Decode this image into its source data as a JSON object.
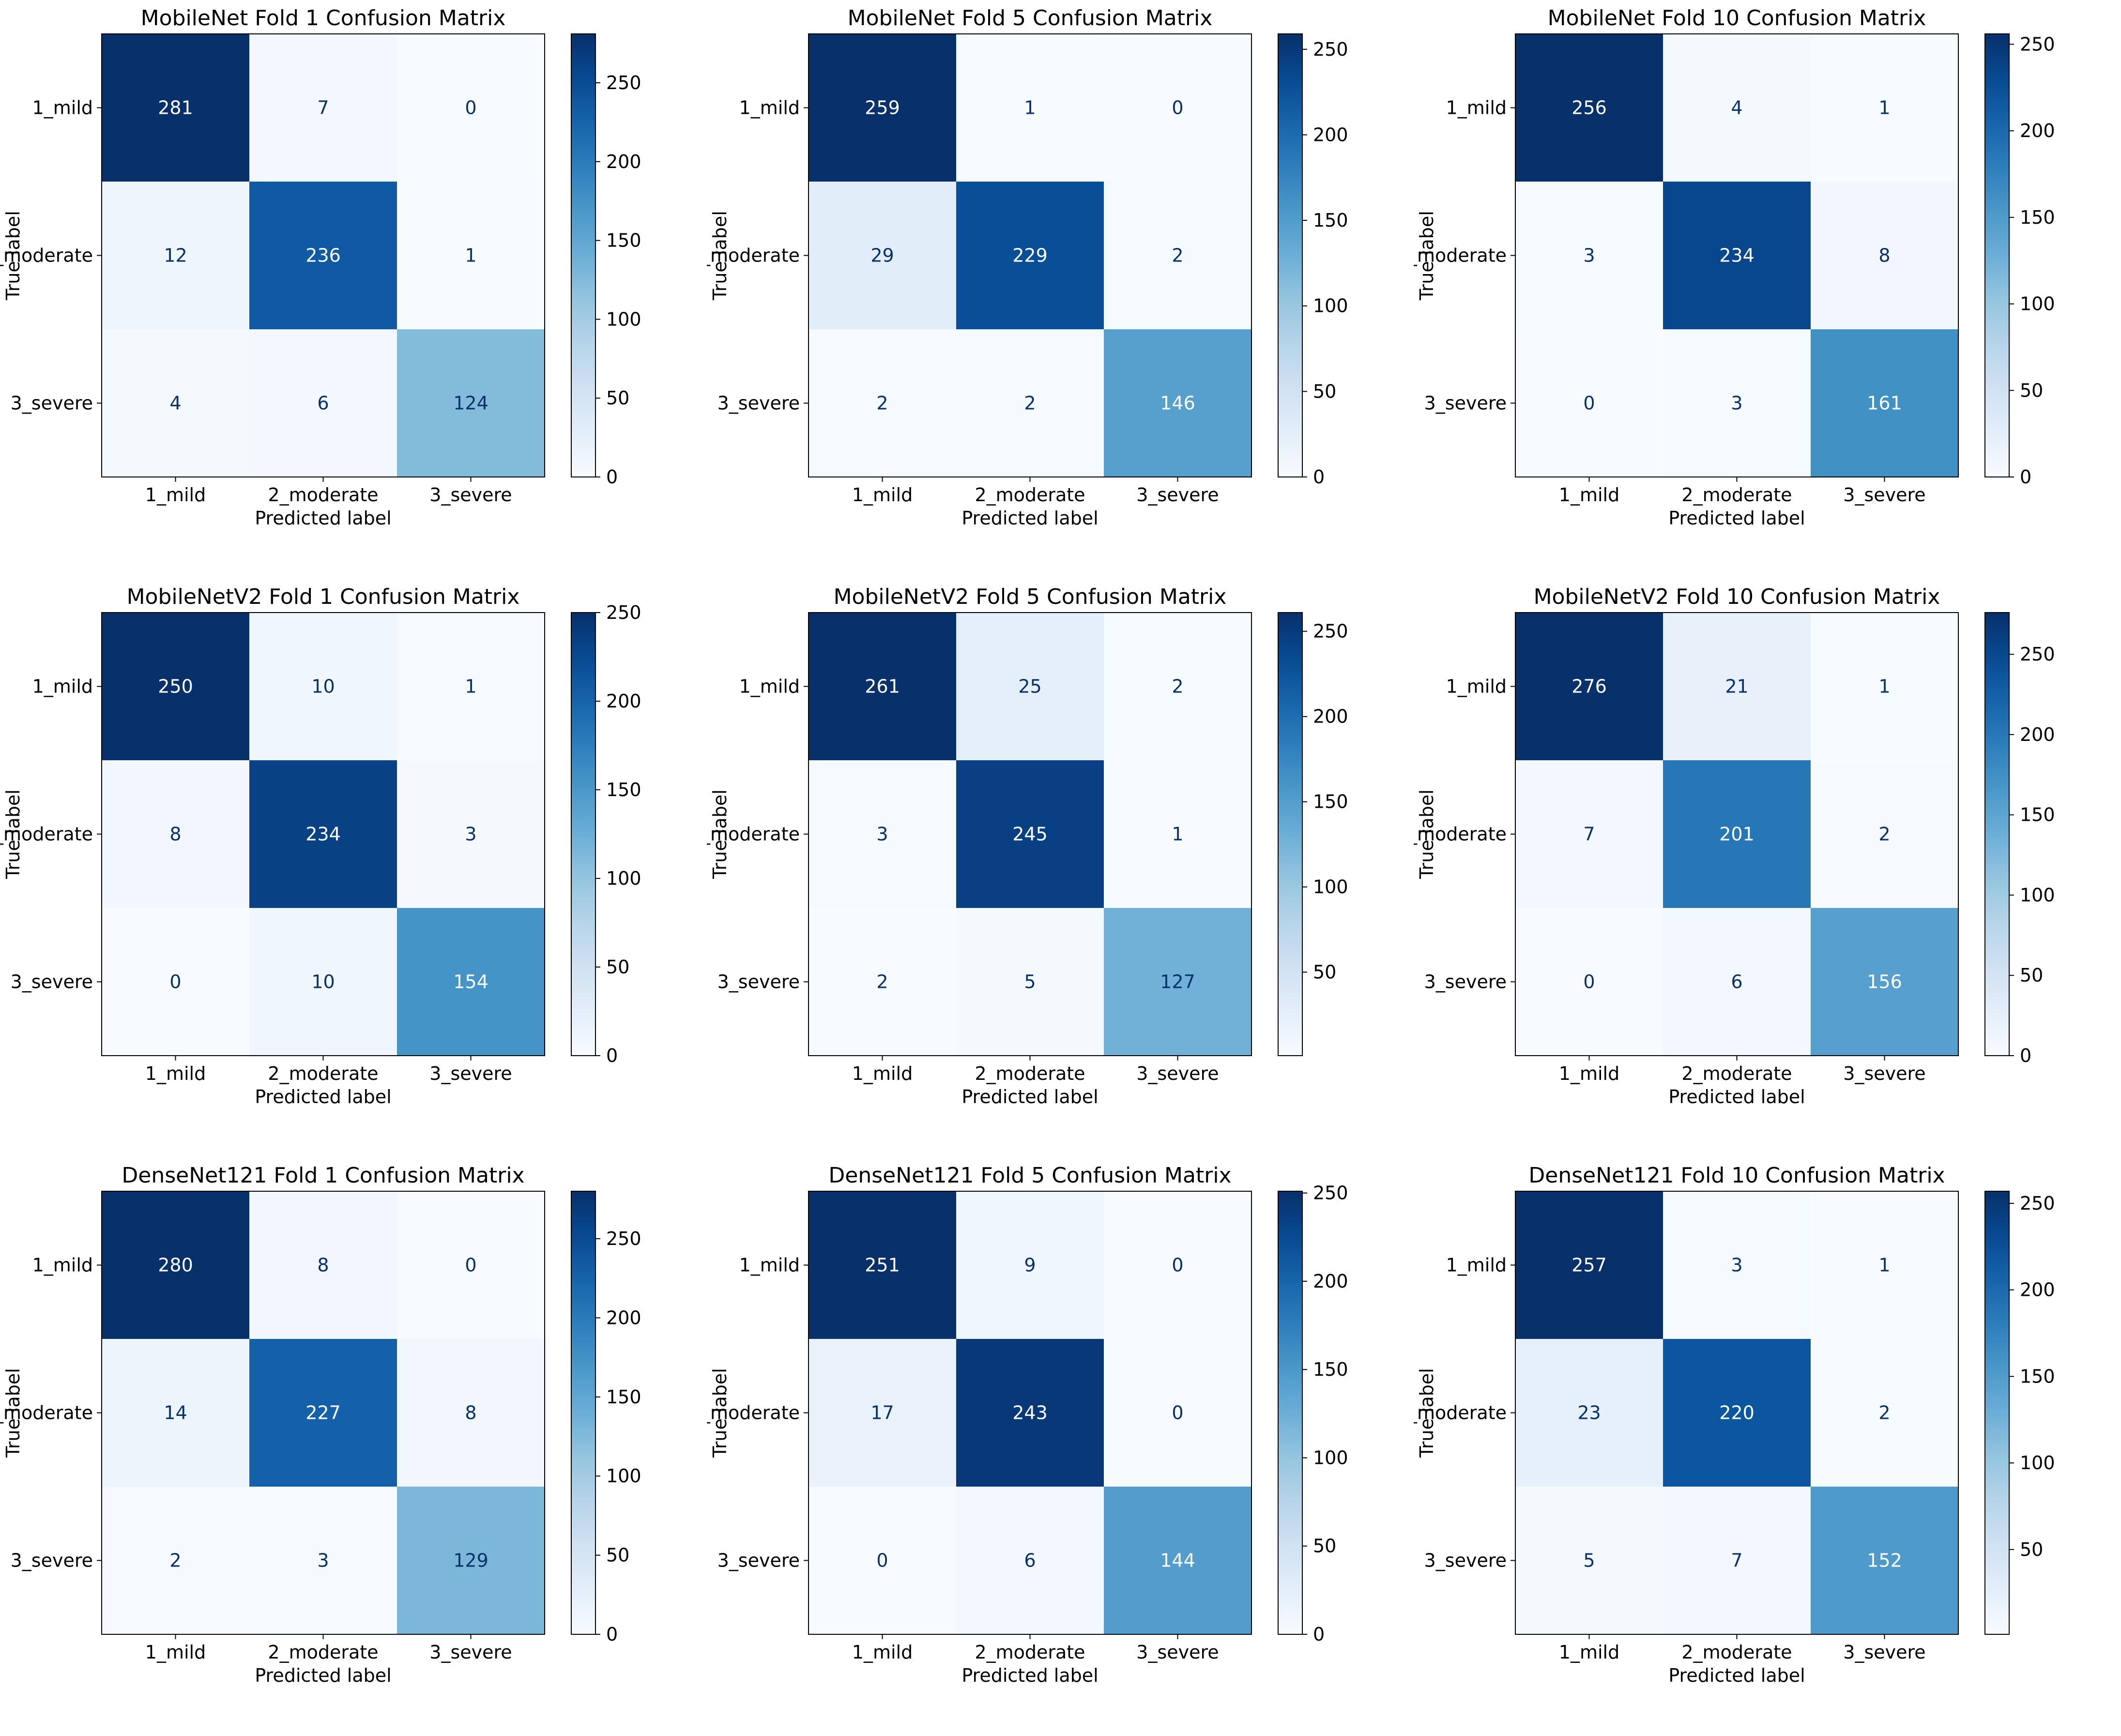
{
  "chart_data": [
    {
      "type": "heatmap",
      "title": "MobileNet Fold 1 Confusion Matrix",
      "xlabel": "Predicted label",
      "ylabel": "True label",
      "x_categories": [
        "1_mild",
        "2_moderate",
        "3_severe"
      ],
      "y_categories": [
        "1_mild",
        "2_moderate",
        "3_severe"
      ],
      "values": [
        [
          281,
          7,
          0
        ],
        [
          12,
          236,
          1
        ],
        [
          4,
          6,
          124
        ]
      ],
      "colorbar": {
        "min": 0,
        "max": 281,
        "ticks": [
          0,
          50,
          100,
          150,
          200,
          250
        ]
      }
    },
    {
      "type": "heatmap",
      "title": "MobileNet Fold 5 Confusion Matrix",
      "xlabel": "Predicted label",
      "ylabel": "True label",
      "x_categories": [
        "1_mild",
        "2_moderate",
        "3_severe"
      ],
      "y_categories": [
        "1_mild",
        "2_moderate",
        "3_severe"
      ],
      "values": [
        [
          259,
          1,
          0
        ],
        [
          29,
          229,
          2
        ],
        [
          2,
          2,
          146
        ]
      ],
      "colorbar": {
        "min": 0,
        "max": 259,
        "ticks": [
          0,
          50,
          100,
          150,
          200,
          250
        ]
      }
    },
    {
      "type": "heatmap",
      "title": "MobileNet Fold 10 Confusion Matrix",
      "xlabel": "Predicted label",
      "ylabel": "True label",
      "x_categories": [
        "1_mild",
        "2_moderate",
        "3_severe"
      ],
      "y_categories": [
        "1_mild",
        "2_moderate",
        "3_severe"
      ],
      "values": [
        [
          256,
          4,
          1
        ],
        [
          3,
          234,
          8
        ],
        [
          0,
          3,
          161
        ]
      ],
      "colorbar": {
        "min": 0,
        "max": 256,
        "ticks": [
          0,
          50,
          100,
          150,
          200,
          250
        ]
      }
    },
    {
      "type": "heatmap",
      "title": "MobileNetV2 Fold 1 Confusion Matrix",
      "xlabel": "Predicted label",
      "ylabel": "True label",
      "x_categories": [
        "1_mild",
        "2_moderate",
        "3_severe"
      ],
      "y_categories": [
        "1_mild",
        "2_moderate",
        "3_severe"
      ],
      "values": [
        [
          250,
          10,
          1
        ],
        [
          8,
          234,
          3
        ],
        [
          0,
          10,
          154
        ]
      ],
      "colorbar": {
        "min": 0,
        "max": 250,
        "ticks": [
          0,
          50,
          100,
          150,
          200,
          250
        ]
      }
    },
    {
      "type": "heatmap",
      "title": "MobileNetV2 Fold 5 Confusion Matrix",
      "xlabel": "Predicted label",
      "ylabel": "True label",
      "x_categories": [
        "1_mild",
        "2_moderate",
        "3_severe"
      ],
      "y_categories": [
        "1_mild",
        "2_moderate",
        "3_severe"
      ],
      "values": [
        [
          261,
          25,
          2
        ],
        [
          3,
          245,
          1
        ],
        [
          2,
          5,
          127
        ]
      ],
      "colorbar": {
        "min": 1,
        "max": 261,
        "ticks": [
          50,
          100,
          150,
          200,
          250
        ]
      }
    },
    {
      "type": "heatmap",
      "title": "MobileNetV2 Fold 10 Confusion Matrix",
      "xlabel": "Predicted label",
      "ylabel": "True label",
      "x_categories": [
        "1_mild",
        "2_moderate",
        "3_severe"
      ],
      "y_categories": [
        "1_mild",
        "2_moderate",
        "3_severe"
      ],
      "values": [
        [
          276,
          21,
          1
        ],
        [
          7,
          201,
          2
        ],
        [
          0,
          6,
          156
        ]
      ],
      "colorbar": {
        "min": 0,
        "max": 276,
        "ticks": [
          0,
          50,
          100,
          150,
          200,
          250
        ]
      }
    },
    {
      "type": "heatmap",
      "title": "DenseNet121 Fold 1 Confusion Matrix",
      "xlabel": "Predicted label",
      "ylabel": "True label",
      "x_categories": [
        "1_mild",
        "2_moderate",
        "3_severe"
      ],
      "y_categories": [
        "1_mild",
        "2_moderate",
        "3_severe"
      ],
      "values": [
        [
          280,
          8,
          0
        ],
        [
          14,
          227,
          8
        ],
        [
          2,
          3,
          129
        ]
      ],
      "colorbar": {
        "min": 0,
        "max": 280,
        "ticks": [
          0,
          50,
          100,
          150,
          200,
          250
        ]
      }
    },
    {
      "type": "heatmap",
      "title": "DenseNet121 Fold 5 Confusion Matrix",
      "xlabel": "Predicted label",
      "ylabel": "True label",
      "x_categories": [
        "1_mild",
        "2_moderate",
        "3_severe"
      ],
      "y_categories": [
        "1_mild",
        "2_moderate",
        "3_severe"
      ],
      "values": [
        [
          251,
          9,
          0
        ],
        [
          17,
          243,
          0
        ],
        [
          0,
          6,
          144
        ]
      ],
      "colorbar": {
        "min": 0,
        "max": 251,
        "ticks": [
          0,
          50,
          100,
          150,
          200,
          250
        ]
      }
    },
    {
      "type": "heatmap",
      "title": "DenseNet121 Fold 10 Confusion Matrix",
      "xlabel": "Predicted label",
      "ylabel": "True label",
      "x_categories": [
        "1_mild",
        "2_moderate",
        "3_severe"
      ],
      "y_categories": [
        "1_mild",
        "2_moderate",
        "3_severe"
      ],
      "values": [
        [
          257,
          3,
          1
        ],
        [
          23,
          220,
          2
        ],
        [
          5,
          7,
          152
        ]
      ],
      "colorbar": {
        "min": 1,
        "max": 257,
        "ticks": [
          50,
          100,
          150,
          200,
          250
        ]
      }
    }
  ]
}
